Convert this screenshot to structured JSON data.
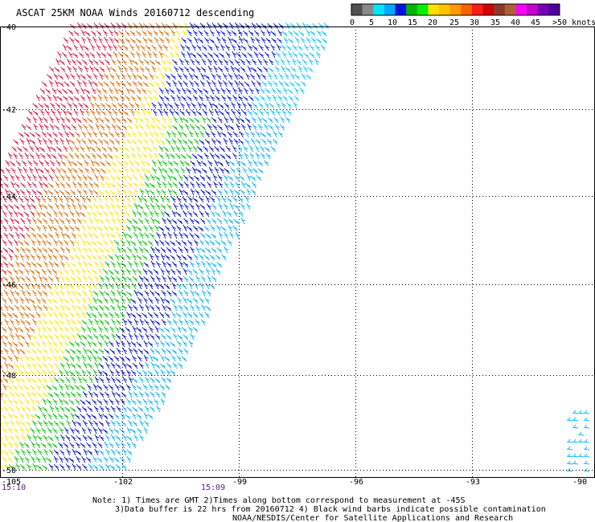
{
  "title": "ASCAT 25KM NOAA Winds 20160712 descending",
  "legend": {
    "colors": [
      "#505050",
      "#8a8a8a",
      "#00e4ff",
      "#00a8ff",
      "#0014e0",
      "#00b400",
      "#00f000",
      "#ffe000",
      "#ffc300",
      "#ff9a00",
      "#ff6000",
      "#ff1a1a",
      "#d20000",
      "#8b3a2a",
      "#b05e3a",
      "#ff00ff",
      "#c800d0",
      "#7a00b4",
      "#50009a"
    ],
    "labels": [
      "0",
      "5",
      "10",
      "15",
      "20",
      "25",
      "30",
      "35",
      "40",
      "45",
      ">50 knots"
    ]
  },
  "axes": {
    "lat_labels": [
      "-40",
      "-42",
      "-44",
      "-46",
      "-48",
      "-50"
    ],
    "lon_labels": [
      "-105",
      "-102",
      "-99",
      "-96",
      "-93",
      "-90"
    ]
  },
  "times": [
    "15:10",
    "15:09"
  ],
  "notes": [
    "Note: 1) Times are GMT 2)Times along bottom correspond to measurement at -45S",
    "3)Data buffer is 22 hrs from 20160712 4) Black wind barbs indicate possible contamination",
    "NOAA/NESDIS/Center for Satellite Applications and Research"
  ],
  "swath_color_bands": [
    "red",
    "orange",
    "yellow",
    "green",
    "dark blue",
    "light blue"
  ]
}
